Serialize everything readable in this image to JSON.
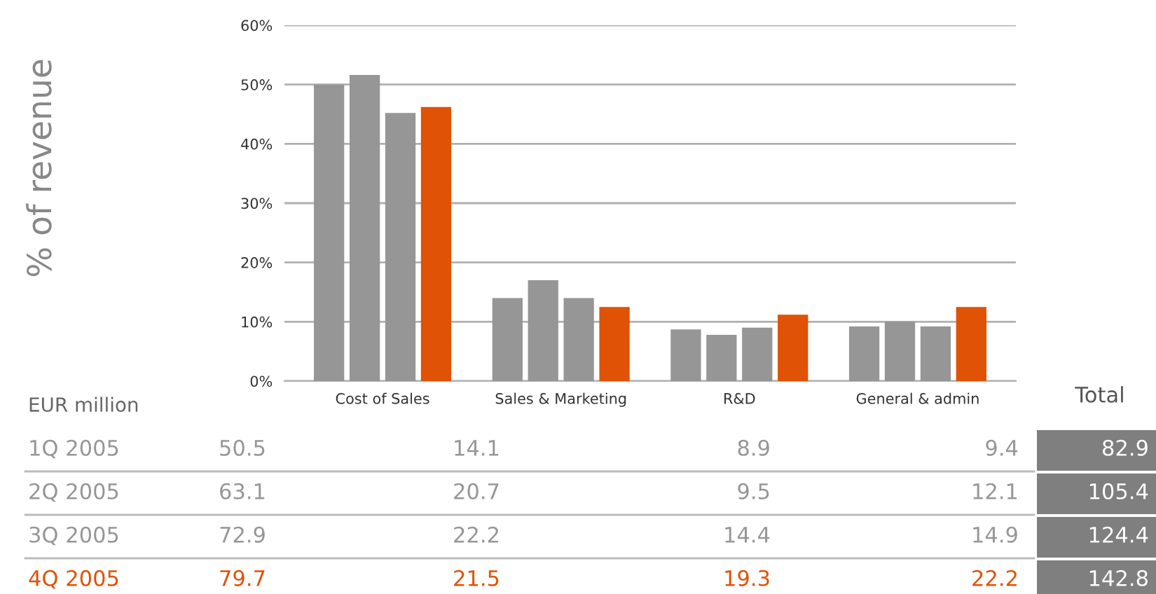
{
  "chart_data": {
    "type": "bar",
    "categories": [
      "Cost of Sales",
      "Sales & Marketing",
      "R&D",
      "General & admin"
    ],
    "series": [
      {
        "color": "#969696",
        "values": [
          50,
          14,
          8.7,
          9.2
        ]
      },
      {
        "color": "#969696",
        "values": [
          51.6,
          17,
          7.8,
          10
        ]
      },
      {
        "color": "#969696",
        "values": [
          45.2,
          14,
          9,
          9.2
        ]
      },
      {
        "color": "#e05206",
        "values": [
          46.2,
          12.5,
          11.2,
          12.5
        ]
      }
    ],
    "ylim": [
      0,
      60
    ],
    "yticks": [
      {
        "value": 0,
        "label": "0%"
      },
      {
        "value": 10,
        "label": "10%"
      },
      {
        "value": 20,
        "label": "20%"
      },
      {
        "value": 30,
        "label": "30%"
      },
      {
        "value": 40,
        "label": "40%"
      },
      {
        "value": 50,
        "label": "50%"
      },
      {
        "value": 60,
        "label": "60%"
      }
    ],
    "grid": "y",
    "annotations": [
      "% of revenue",
      "EUR million",
      "Total",
      "1Q 2005",
      "50.5",
      "14.1",
      "8.9",
      "9.4",
      "82.9",
      "2Q 2005",
      "63.1",
      "20.7",
      "9.5",
      "12.1",
      "105.4",
      "3Q 2005",
      "72.9",
      "22.2",
      "14.4",
      "14.9",
      "124.4",
      "4Q 2005",
      "79.7",
      "21.5",
      "19.3",
      "22.2",
      "142.8"
    ]
  }
}
